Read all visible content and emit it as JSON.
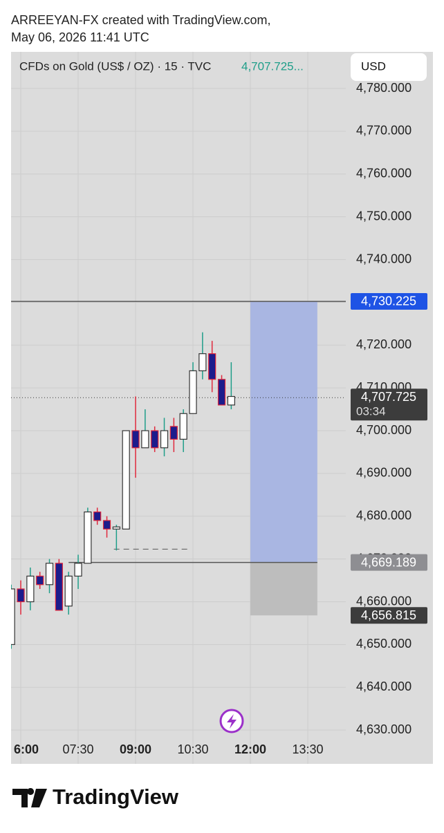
{
  "header": {
    "line1": "ARREEYAN-FX created with TradingView.com,",
    "line2": "May 06, 2026 11:41 UTC"
  },
  "footer": {
    "brand": "TradingView"
  },
  "chart_data": {
    "type": "candlestick",
    "symbol": "CFDs on Gold (US$ / OZ) · 15 · TVC",
    "last_price_text": "4,707.725...",
    "currency": "USD",
    "x": [
      345,
      360,
      375,
      390,
      405,
      420,
      435,
      450,
      465,
      480,
      495,
      510,
      525,
      540,
      555,
      570,
      585,
      600,
      615,
      630,
      645,
      660,
      675,
      690
    ],
    "open": [
      4650,
      4663,
      4660,
      4666,
      4664,
      4669,
      4659,
      4666,
      4669,
      4681,
      4679,
      4677,
      4677,
      4700,
      4696,
      4700,
      4696,
      4701,
      4698,
      4704,
      4714,
      4718,
      4712,
      4706
    ],
    "high": [
      4664,
      4665,
      4668,
      4667,
      4670,
      4670,
      4667,
      4671,
      4682,
      4682,
      4680,
      4678,
      4700,
      4708,
      4705,
      4701,
      4703,
      4703,
      4705,
      4716,
      4723,
      4721,
      4713,
      4716
    ],
    "low": [
      4649,
      4657,
      4658,
      4663,
      4662,
      4658,
      4657,
      4663,
      4669,
      4678,
      4675,
      4672,
      4677,
      4689,
      4696,
      4695,
      4694,
      4695,
      4695,
      4704,
      4712,
      4709,
      4706,
      4705
    ],
    "close": [
      4663,
      4660,
      4666,
      4664,
      4669,
      4658,
      4666,
      4669,
      4681,
      4679,
      4677,
      4677.5,
      4700,
      4696,
      4700,
      4696,
      4700,
      4698,
      4704,
      4714,
      4718,
      4712,
      4706,
      4708
    ],
    "up_color": "#ffffff",
    "down_color": "#1c1c8c",
    "up_wick": "#1f9e89",
    "down_wick": "#e0283c",
    "xlim": [
      344.8,
      869.6
    ],
    "xticks": [
      {
        "value": 360,
        "label": "6:00"
      },
      {
        "value": 450,
        "label": "07:30"
      },
      {
        "value": 540,
        "label": "09:00"
      },
      {
        "value": 630,
        "label": "10:30"
      },
      {
        "value": 720,
        "label": "12:00"
      },
      {
        "value": 810,
        "label": "13:30"
      }
    ],
    "ylim": [
      4622.1,
      4788.57
    ],
    "yticks": [
      {
        "value": 4630,
        "label": "4,630.000"
      },
      {
        "value": 4640,
        "label": "4,640.000"
      },
      {
        "value": 4650,
        "label": "4,650.000"
      },
      {
        "value": 4660,
        "label": "4,660.000"
      },
      {
        "value": 4670,
        "label": "4,670.000"
      },
      {
        "value": 4680,
        "label": "4,680.000"
      },
      {
        "value": 4690,
        "label": "4,690.000"
      },
      {
        "value": 4700,
        "label": "4,700.000"
      },
      {
        "value": 4710,
        "label": "4,710.000"
      },
      {
        "value": 4720,
        "label": "4,720.000"
      },
      {
        "value": 4730,
        "label": "4,730.000"
      },
      {
        "value": 4740,
        "label": "4,740.000"
      },
      {
        "value": 4750,
        "label": "4,750.000"
      },
      {
        "value": 4760,
        "label": "4,760.000"
      },
      {
        "value": 4770,
        "label": "4,770.000"
      },
      {
        "value": 4780,
        "label": "4,780.000"
      }
    ],
    "grid": true,
    "position": {
      "x_start": 720,
      "x_end": 825,
      "target": {
        "value": 4730.225,
        "label": "4,730.225"
      },
      "entry": {
        "value": 4669.189,
        "label": "4,669.189"
      },
      "stop": {
        "value": 4656.815,
        "label": "4,656.815"
      },
      "target_color": "#a9b6e2",
      "stop_color": "#bdbdbd"
    },
    "target_line_start": 344.8,
    "entry_line_start": 435,
    "dashed_level": {
      "value": 4672.3,
      "x_start": 506,
      "x_end": 625
    },
    "current_price": {
      "value": 4707.725,
      "label": "4,707.725",
      "countdown": "03:34"
    }
  }
}
